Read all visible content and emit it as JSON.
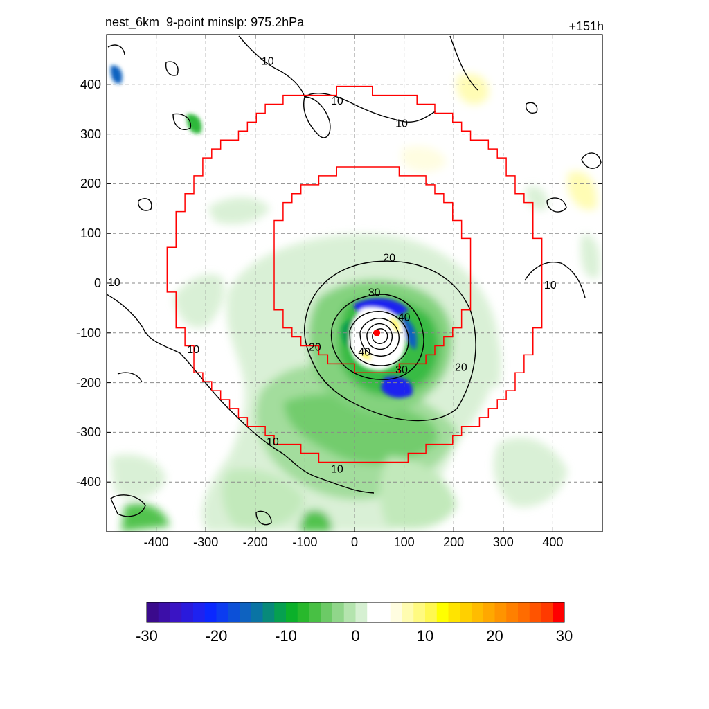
{
  "titles": {
    "left": "nest_6km  9-point minslp: 975.2hPa",
    "right": "+151h"
  },
  "chart_data": {
    "type": "heatmap",
    "title": "nest_6km  9-point minslp: 975.2hPa",
    "subtitle": "+151h",
    "xlabel": "",
    "ylabel": "",
    "xlim": [
      -500,
      500
    ],
    "ylim": [
      -500,
      500
    ],
    "x_ticks": [
      -400,
      -300,
      -200,
      -100,
      0,
      100,
      200,
      300,
      400
    ],
    "y_ticks": [
      400,
      300,
      200,
      100,
      0,
      -100,
      -200,
      -300,
      -400
    ],
    "grid": true,
    "storm_center": [
      45,
      -100
    ],
    "contour_levels": [
      10,
      20,
      30,
      40
    ],
    "contour_labels": [
      {
        "text": "10",
        "x": -175,
        "y": 445
      },
      {
        "text": "10",
        "x": -35,
        "y": 365
      },
      {
        "text": "10",
        "x": 95,
        "y": 320
      },
      {
        "text": "10",
        "x": -485,
        "y": 0
      },
      {
        "text": "10",
        "x": -325,
        "y": -135
      },
      {
        "text": "10",
        "x": -165,
        "y": -320
      },
      {
        "text": "10",
        "x": -35,
        "y": -375
      },
      {
        "text": "10",
        "x": 395,
        "y": -5
      },
      {
        "text": "20",
        "x": 70,
        "y": 50
      },
      {
        "text": "20",
        "x": -80,
        "y": -130
      },
      {
        "text": "20",
        "x": 215,
        "y": -170
      },
      {
        "text": "30",
        "x": 40,
        "y": -20
      },
      {
        "text": "30",
        "x": 95,
        "y": -175
      },
      {
        "text": "40",
        "x": 100,
        "y": -70
      },
      {
        "text": "40",
        "x": 20,
        "y": -140
      }
    ],
    "colorbar": {
      "min": -30,
      "max": 30,
      "tick_labels": [
        "-30",
        "-20",
        "-10",
        "0",
        "10",
        "20",
        "30"
      ],
      "colors": [
        "#3a0a8c",
        "#3c0fa8",
        "#3a14c4",
        "#2a1adc",
        "#1e22f0",
        "#0a28ff",
        "#0c3cf0",
        "#0c50d8",
        "#0e62c0",
        "#0a74a4",
        "#088a7a",
        "#06a050",
        "#0bb02a",
        "#28b82c",
        "#48c044",
        "#6cca66",
        "#90d68a",
        "#b4e4ae",
        "#d6f0d2",
        "#ffffff",
        "#ffffff",
        "#fffde0",
        "#fffcb0",
        "#fffa80",
        "#fff850",
        "#ffff00",
        "#ffe400",
        "#ffd000",
        "#ffbc00",
        "#ffa800",
        "#ff9400",
        "#ff8000",
        "#ff6c00",
        "#ff5400",
        "#ff3a00",
        "#ff0000"
      ]
    },
    "colors": {
      "red_boundary": "#ff0000",
      "contour": "#000000",
      "grid": "#8a8a8a",
      "center_marker": "#ff0000"
    }
  }
}
